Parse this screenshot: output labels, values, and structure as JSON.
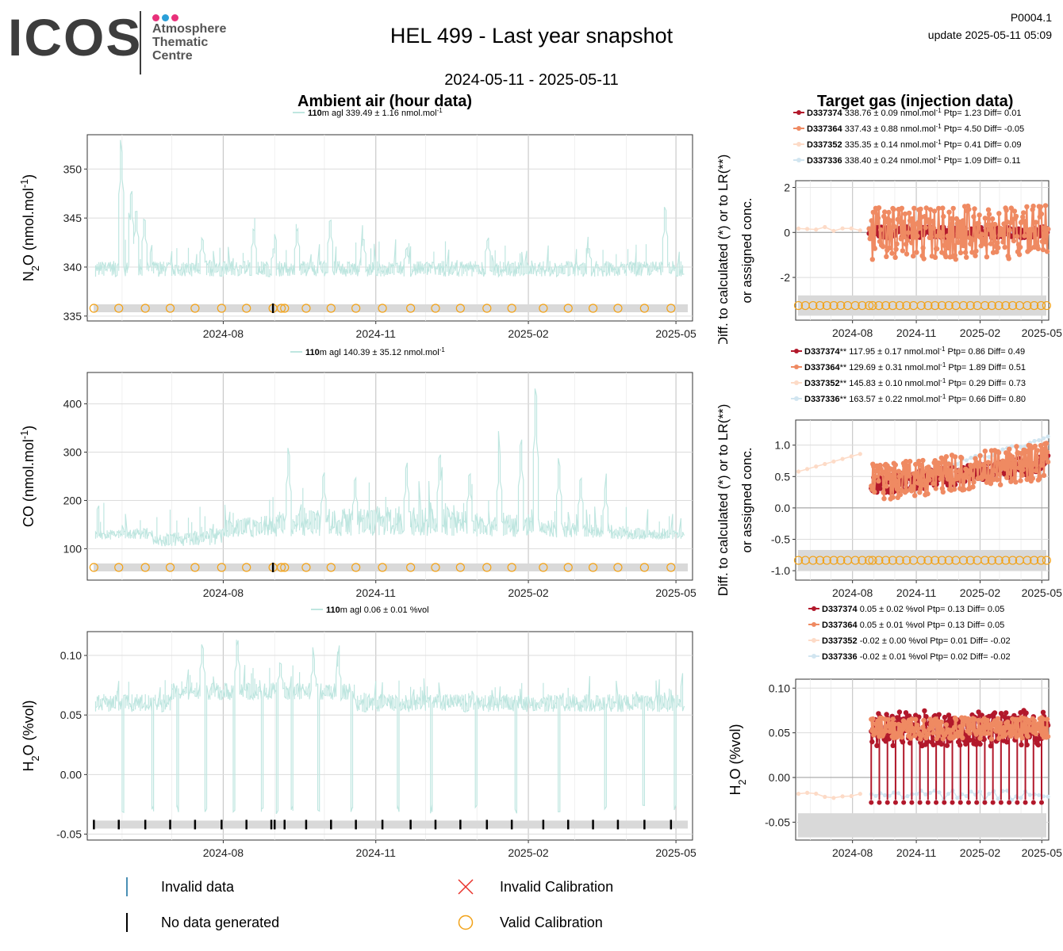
{
  "header": {
    "logo_text": "ICOS",
    "logo_sub": [
      "Atmosphere",
      "Thematic",
      "Centre"
    ],
    "title": "HEL 499 - Last year snapshot",
    "code": "P0004.1",
    "update": "update  2025-05-11 05:09",
    "date_range": "2024-05-11 - 2025-05-11"
  },
  "sections": {
    "ambient_title": "Ambient air (hour data)",
    "target_title": "Target gas (injection data)"
  },
  "colors": {
    "ambient_line": "#bfe6e0",
    "calib_circle": "#f2a218",
    "grey_band": "#d9d9d9",
    "series": [
      "#b2182b",
      "#ef8a62",
      "#fddbc7",
      "#d1e5f0"
    ]
  },
  "legend_bottom": {
    "invalid_data": "Invalid data",
    "no_data": "No data generated",
    "invalid_calibration": "Invalid Calibration",
    "valid_calibration": "Valid Calibration"
  },
  "chart_data": [
    {
      "type": "line",
      "panel": "ambient",
      "ylabel": "N2O (nmol.mol-1)",
      "legend": {
        "height": "110",
        "text": "m agl 339.49 ± 1.16 nmol.mol",
        "unit_sup": "-1"
      },
      "x_ticks": [
        "2024-08",
        "2024-11",
        "2025-02",
        "2025-05"
      ],
      "ylim": [
        334.5,
        353.5
      ],
      "y_ticks": [
        335,
        340,
        345,
        350
      ],
      "baseline": 339.5,
      "spikes": [
        {
          "date": "2024-06-01",
          "value": 353
        },
        {
          "date": "2024-06-07",
          "value": 348
        },
        {
          "date": "2024-06-10",
          "value": 346
        },
        {
          "date": "2024-06-15",
          "value": 345
        },
        {
          "date": "2024-07-20",
          "value": 343
        },
        {
          "date": "2024-08-20",
          "value": 344
        },
        {
          "date": "2024-09-01",
          "value": 342
        },
        {
          "date": "2024-09-15",
          "value": 344
        },
        {
          "date": "2024-10-05",
          "value": 345
        },
        {
          "date": "2024-10-25",
          "value": 343
        },
        {
          "date": "2024-11-20",
          "value": 342
        },
        {
          "date": "2025-01-08",
          "value": 343
        },
        {
          "date": "2025-03-10",
          "value": 342
        },
        {
          "date": "2025-04-25",
          "value": 346
        }
      ],
      "calibrations": [
        "2024-05-15",
        "2024-05-30",
        "2024-06-15",
        "2024-06-30",
        "2024-07-15",
        "2024-07-31",
        "2024-08-15",
        "2024-08-31",
        "2024-09-05",
        "2024-09-07",
        "2024-09-20",
        "2024-10-05",
        "2024-10-20",
        "2024-11-05",
        "2024-11-22",
        "2024-12-07",
        "2024-12-22",
        "2025-01-07",
        "2025-01-22",
        "2025-02-10",
        "2025-02-25",
        "2025-03-12",
        "2025-03-27",
        "2025-04-12",
        "2025-04-28"
      ],
      "no_data": [
        "2024-08-31"
      ]
    },
    {
      "type": "line",
      "panel": "ambient",
      "ylabel": "CO (nmol.mol-1)",
      "legend": {
        "height": "110",
        "text": "m agl 140.39 ± 35.12 nmol.mol",
        "unit_sup": "-1"
      },
      "x_ticks": [
        "2024-08",
        "2024-11",
        "2025-02",
        "2025-05"
      ],
      "ylim": [
        35,
        465
      ],
      "y_ticks": [
        100,
        200,
        300,
        400
      ],
      "baseline": 125,
      "spikes": [
        {
          "date": "2024-09-10",
          "value": 310
        },
        {
          "date": "2024-10-01",
          "value": 260
        },
        {
          "date": "2024-10-20",
          "value": 250
        },
        {
          "date": "2024-11-20",
          "value": 280
        },
        {
          "date": "2024-12-10",
          "value": 300
        },
        {
          "date": "2024-12-28",
          "value": 260
        },
        {
          "date": "2025-01-15",
          "value": 300
        },
        {
          "date": "2025-01-28",
          "value": 330
        },
        {
          "date": "2025-02-06",
          "value": 440
        },
        {
          "date": "2025-02-20",
          "value": 280
        },
        {
          "date": "2025-03-05",
          "value": 250
        },
        {
          "date": "2025-03-20",
          "value": 230
        }
      ],
      "calibrations": [
        "2024-05-15",
        "2024-05-30",
        "2024-06-15",
        "2024-06-30",
        "2024-07-15",
        "2024-07-31",
        "2024-08-15",
        "2024-08-31",
        "2024-09-05",
        "2024-09-07",
        "2024-09-20",
        "2024-10-05",
        "2024-10-20",
        "2024-11-05",
        "2024-11-22",
        "2024-12-07",
        "2024-12-22",
        "2025-01-07",
        "2025-01-22",
        "2025-02-10",
        "2025-02-25",
        "2025-03-12",
        "2025-03-27",
        "2025-04-12",
        "2025-04-28"
      ],
      "no_data": [
        "2024-08-31"
      ]
    },
    {
      "type": "line",
      "panel": "ambient",
      "ylabel": "H2O (%vol)",
      "legend": {
        "height": "110",
        "text": "m agl 0.06 ± 0.01 %vol",
        "unit_sup": ""
      },
      "x_ticks": [
        "2024-08",
        "2024-11",
        "2025-02",
        "2025-05"
      ],
      "ylim": [
        -0.055,
        0.12
      ],
      "y_ticks": [
        -0.05,
        0.0,
        0.05,
        0.1
      ],
      "y_tick_labels": [
        "-0.05",
        "0.00",
        "0.05",
        "0.10"
      ],
      "baseline": 0.06,
      "spikes": [
        {
          "date": "2024-07-20",
          "value": 0.11
        },
        {
          "date": "2024-08-10",
          "value": 0.113
        },
        {
          "date": "2024-09-05",
          "value": 0.095
        },
        {
          "date": "2024-09-25",
          "value": 0.1
        },
        {
          "date": "2024-10-10",
          "value": 0.1
        }
      ],
      "dips": [
        "2024-05-15",
        "2024-06-02",
        "2024-06-20",
        "2024-07-05",
        "2024-07-22",
        "2024-08-08",
        "2024-08-25",
        "2024-09-03",
        "2024-09-12",
        "2024-09-28",
        "2024-10-18",
        "2024-11-15",
        "2024-12-05",
        "2025-01-01",
        "2025-01-25",
        "2025-02-20",
        "2025-03-20",
        "2025-04-12",
        "2025-05-01"
      ],
      "calibrations": [],
      "no_data": [
        "2024-05-15",
        "2024-05-30",
        "2024-06-15",
        "2024-06-30",
        "2024-07-15",
        "2024-07-31",
        "2024-08-15",
        "2024-08-30",
        "2024-09-01",
        "2024-09-07",
        "2024-09-20",
        "2024-10-05",
        "2024-10-20",
        "2024-11-05",
        "2024-11-22",
        "2024-12-07",
        "2024-12-22",
        "2025-01-07",
        "2025-01-22",
        "2025-02-10",
        "2025-02-25",
        "2025-03-12",
        "2025-03-27",
        "2025-04-12",
        "2025-04-28"
      ]
    },
    {
      "type": "scatter",
      "panel": "target",
      "ylabel_lines": [
        "Diff. to calculated (*) or to LR(**)",
        "or assigned conc."
      ],
      "x_ticks": [
        "2024-08",
        "2024-11",
        "2025-02",
        "2025-05"
      ],
      "ylim": [
        -3.9,
        2.3
      ],
      "y_ticks": [
        -2,
        0,
        2
      ],
      "series": [
        {
          "name": "D337374",
          "text": "338.76 ± 0.09 nmol.mol",
          "sup": "-1",
          "stats": "Ptp= 1.23 Diff= 0.01",
          "mean": 0.0,
          "spread": 0.25,
          "start": "2024-08-25"
        },
        {
          "name": "D337364",
          "text": "337.43 ± 0.88 nmol.mol",
          "sup": "-1",
          "stats": "Ptp= 4.50 Diff= -0.05",
          "mean": 0.0,
          "spread": 1.2,
          "start": "2024-08-25"
        },
        {
          "name": "D337352",
          "text": "335.35 ± 0.14 nmol.mol",
          "sup": "-1",
          "stats": "Ptp= 0.41 Diff= 0.09",
          "mean": 0.15,
          "spread": 0.1,
          "start": "2024-05-15"
        },
        {
          "name": "D337336",
          "text": "338.40 ± 0.24 nmol.mol",
          "sup": "-1",
          "stats": "Ptp= 1.09 Diff= 0.11",
          "mean": 0.1,
          "spread": 0.2,
          "start": "2024-08-25"
        }
      ],
      "band": [
        -3.7,
        -2.8
      ],
      "calibrations": [
        "2024-05-15",
        "2024-05-25",
        "2024-06-05",
        "2024-06-15",
        "2024-06-25",
        "2024-07-05",
        "2024-07-15",
        "2024-07-25",
        "2024-08-05",
        "2024-08-15",
        "2024-08-25",
        "2024-08-30",
        "2024-09-08",
        "2024-09-18",
        "2024-09-28",
        "2024-10-08",
        "2024-10-18",
        "2024-10-28",
        "2024-11-08",
        "2024-11-18",
        "2024-11-28",
        "2024-12-08",
        "2024-12-18",
        "2024-12-28",
        "2025-01-08",
        "2025-01-18",
        "2025-01-28",
        "2025-02-08",
        "2025-02-18",
        "2025-02-28",
        "2025-03-10",
        "2025-03-20",
        "2025-03-30",
        "2025-04-10",
        "2025-04-20",
        "2025-04-30",
        "2025-05-08"
      ]
    },
    {
      "type": "scatter",
      "panel": "target",
      "ylabel_lines": [
        "Diff. to calculated (*) or to LR(**)",
        "or assigned conc."
      ],
      "x_ticks": [
        "2024-08",
        "2024-11",
        "2025-02",
        "2025-05"
      ],
      "ylim": [
        -1.15,
        1.4
      ],
      "y_ticks": [
        -1.0,
        -0.5,
        0.0,
        0.5,
        1.0
      ],
      "y_tick_labels": [
        "-1.0",
        "-0.5",
        "0.0",
        "0.5",
        "1.0"
      ],
      "series": [
        {
          "name": "D337374",
          "suffix": "**",
          "text": "117.95 ± 0.17 nmol.mol",
          "sup": "-1",
          "stats": "Ptp= 0.86 Diff= 0.49",
          "mean": 0.45,
          "spread": 0.15,
          "start": "2024-08-28"
        },
        {
          "name": "D337364",
          "suffix": "**",
          "text": "129.69 ± 0.31 nmol.mol",
          "sup": "-1",
          "stats": "Ptp= 1.89 Diff= 0.51",
          "mean": 0.5,
          "spread": 0.3,
          "start": "2024-08-28"
        },
        {
          "name": "D337352",
          "suffix": "**",
          "text": "145.83 ± 0.10 nmol.mol",
          "sup": "-1",
          "stats": "Ptp= 0.29 Diff= 0.73",
          "mean": 0.7,
          "spread": 0.08,
          "start": "2024-05-15"
        },
        {
          "name": "D337336",
          "suffix": "**",
          "text": "163.57 ± 0.22 nmol.mol",
          "sup": "-1",
          "stats": "Ptp= 0.66 Diff= 0.80",
          "mean": 0.8,
          "spread": 0.2,
          "start": "2024-08-28"
        }
      ],
      "band": [
        -1.0,
        -0.67
      ],
      "calibrations": [
        "2024-05-15",
        "2024-05-25",
        "2024-06-05",
        "2024-06-15",
        "2024-06-25",
        "2024-07-05",
        "2024-07-15",
        "2024-07-25",
        "2024-08-05",
        "2024-08-15",
        "2024-08-25",
        "2024-08-30",
        "2024-09-08",
        "2024-09-18",
        "2024-09-28",
        "2024-10-08",
        "2024-10-18",
        "2024-10-28",
        "2024-11-08",
        "2024-11-18",
        "2024-11-28",
        "2024-12-08",
        "2024-12-18",
        "2024-12-28",
        "2025-01-08",
        "2025-01-18",
        "2025-01-28",
        "2025-02-08",
        "2025-02-18",
        "2025-02-28",
        "2025-03-10",
        "2025-03-20",
        "2025-03-30",
        "2025-04-10",
        "2025-04-20",
        "2025-04-30",
        "2025-05-08"
      ]
    },
    {
      "type": "scatter",
      "panel": "target",
      "ylabel": "H2O (%vol)",
      "x_ticks": [
        "2024-08",
        "2024-11",
        "2025-02",
        "2025-05"
      ],
      "ylim": [
        -0.07,
        0.11
      ],
      "y_ticks": [
        -0.05,
        0.0,
        0.05,
        0.1
      ],
      "y_tick_labels": [
        "-0.05",
        "0.00",
        "0.05",
        "0.10"
      ],
      "series": [
        {
          "name": "D337374",
          "text": "0.05 ± 0.02 %vol",
          "sup": "",
          "stats": "Ptp= 0.13 Diff= 0.05",
          "mean": 0.055,
          "spread": 0.02,
          "start": "2024-08-28"
        },
        {
          "name": "D337364",
          "text": "0.05 ± 0.01 %vol",
          "sup": "",
          "stats": "Ptp= 0.13 Diff= 0.05",
          "mean": 0.055,
          "spread": 0.012,
          "start": "2024-08-28"
        },
        {
          "name": "D337352",
          "text": "-0.02 ± 0.00 %vol",
          "sup": "",
          "stats": "Ptp= 0.01 Diff= -0.02",
          "mean": -0.02,
          "spread": 0.003,
          "start": "2024-05-15"
        },
        {
          "name": "D337336",
          "text": "-0.02 ± 0.01 %vol",
          "sup": "",
          "stats": "Ptp= 0.02 Diff= -0.02",
          "mean": -0.02,
          "spread": 0.006,
          "start": "2024-08-28"
        }
      ],
      "band": [
        -0.067,
        -0.04
      ],
      "calibrations": []
    }
  ]
}
